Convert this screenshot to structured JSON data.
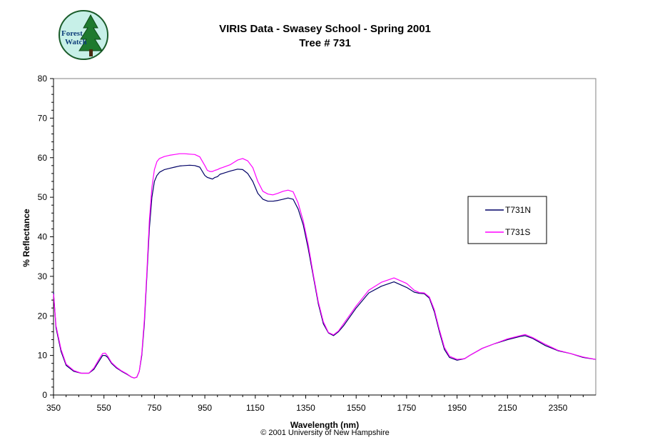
{
  "logo": {
    "line1": "Forest",
    "line2": "Watch"
  },
  "copyright": "© 2001 University of New Hampshire",
  "chart_data": {
    "type": "line",
    "title": "VIRIS Data - Swasey School - Spring 2001",
    "subtitle": "Tree # 731",
    "xlabel": "Wavelength (nm)",
    "ylabel": "% Reflectance",
    "xlim": [
      350,
      2500
    ],
    "ylim": [
      0,
      80
    ],
    "xticks": [
      350,
      550,
      750,
      950,
      1150,
      1350,
      1550,
      1750,
      1950,
      2150,
      2350
    ],
    "yticks": [
      0,
      10,
      20,
      30,
      40,
      50,
      60,
      70,
      80
    ],
    "grid": false,
    "legend_position": "right",
    "series": [
      {
        "name": "T731N",
        "color": "#000066",
        "x": [
          350,
          360,
          380,
          400,
          430,
          460,
          490,
          510,
          530,
          545,
          555,
          565,
          580,
          600,
          620,
          640,
          660,
          670,
          680,
          690,
          700,
          710,
          720,
          730,
          740,
          750,
          760,
          770,
          790,
          810,
          830,
          850,
          870,
          890,
          910,
          930,
          950,
          960,
          970,
          980,
          990,
          1000,
          1010,
          1020,
          1050,
          1080,
          1100,
          1120,
          1140,
          1160,
          1180,
          1200,
          1220,
          1240,
          1260,
          1280,
          1300,
          1320,
          1340,
          1360,
          1380,
          1400,
          1420,
          1440,
          1460,
          1480,
          1500,
          1550,
          1600,
          1650,
          1700,
          1750,
          1780,
          1800,
          1820,
          1840,
          1860,
          1880,
          1900,
          1920,
          1950,
          1980,
          2000,
          2050,
          2100,
          2150,
          2200,
          2220,
          2250,
          2300,
          2350,
          2400,
          2450,
          2500
        ],
        "values": [
          26,
          17,
          11,
          7.5,
          6,
          5.5,
          5.5,
          6.5,
          8.5,
          10,
          10,
          9.5,
          8,
          6.8,
          6,
          5.3,
          4.5,
          4.3,
          4.5,
          6,
          10,
          18,
          30,
          42,
          50,
          54,
          55.5,
          56.3,
          57,
          57.3,
          57.6,
          57.9,
          58,
          58.1,
          58,
          57.6,
          55.5,
          55,
          54.8,
          54.6,
          55,
          55.2,
          55.8,
          56,
          56.6,
          57.1,
          57,
          56,
          54,
          51,
          49.5,
          49,
          49,
          49.2,
          49.5,
          49.8,
          49.5,
          47,
          43,
          37,
          30,
          23,
          18,
          15.7,
          15,
          16,
          17.5,
          22,
          25.8,
          27.5,
          28.6,
          27.2,
          26,
          25.7,
          25.6,
          24.5,
          21,
          16,
          11.5,
          9.5,
          8.8,
          9.2,
          10,
          11.8,
          13,
          14,
          14.8,
          15,
          14.3,
          12.5,
          11.2,
          10.5,
          9.5,
          9
        ]
      },
      {
        "name": "T731S",
        "color": "#ff00ff",
        "x": [
          350,
          360,
          380,
          400,
          430,
          460,
          490,
          510,
          530,
          545,
          555,
          565,
          580,
          600,
          620,
          640,
          660,
          670,
          680,
          690,
          700,
          710,
          720,
          730,
          740,
          750,
          760,
          770,
          790,
          810,
          830,
          850,
          870,
          890,
          910,
          930,
          950,
          960,
          970,
          980,
          990,
          1000,
          1010,
          1020,
          1050,
          1080,
          1100,
          1120,
          1140,
          1160,
          1180,
          1200,
          1220,
          1240,
          1260,
          1280,
          1300,
          1320,
          1340,
          1360,
          1380,
          1400,
          1420,
          1440,
          1460,
          1480,
          1500,
          1550,
          1600,
          1650,
          1700,
          1750,
          1780,
          1800,
          1820,
          1840,
          1860,
          1880,
          1900,
          1920,
          1950,
          1980,
          2000,
          2050,
          2100,
          2150,
          2200,
          2220,
          2250,
          2300,
          2350,
          2400,
          2450,
          2500
        ],
        "values": [
          25.5,
          17.5,
          11.5,
          7.8,
          6.2,
          5.5,
          5.5,
          6.8,
          9,
          10.5,
          10.6,
          9.8,
          8.2,
          7,
          6.1,
          5.4,
          4.5,
          4.3,
          4.5,
          6,
          10.5,
          19,
          31,
          44,
          52.5,
          57,
          59,
          59.8,
          60.3,
          60.6,
          60.8,
          61,
          61,
          60.9,
          60.8,
          60.2,
          58,
          56.8,
          56.5,
          56.5,
          56.8,
          57,
          57.3,
          57.5,
          58.2,
          59.4,
          59.8,
          59.2,
          57.5,
          54,
          51.5,
          50.8,
          50.6,
          51,
          51.5,
          51.8,
          51.4,
          48.5,
          44,
          38,
          30.5,
          23.5,
          18.5,
          15.8,
          15.2,
          16.2,
          18,
          22.5,
          26.5,
          28.5,
          29.6,
          28.2,
          26.5,
          25.9,
          25.8,
          24.8,
          21.5,
          16.5,
          12,
          9.8,
          9,
          9.2,
          10,
          11.8,
          13,
          14.2,
          15,
          15.3,
          14.5,
          12.8,
          11.3,
          10.5,
          9.6,
          9
        ]
      }
    ]
  }
}
